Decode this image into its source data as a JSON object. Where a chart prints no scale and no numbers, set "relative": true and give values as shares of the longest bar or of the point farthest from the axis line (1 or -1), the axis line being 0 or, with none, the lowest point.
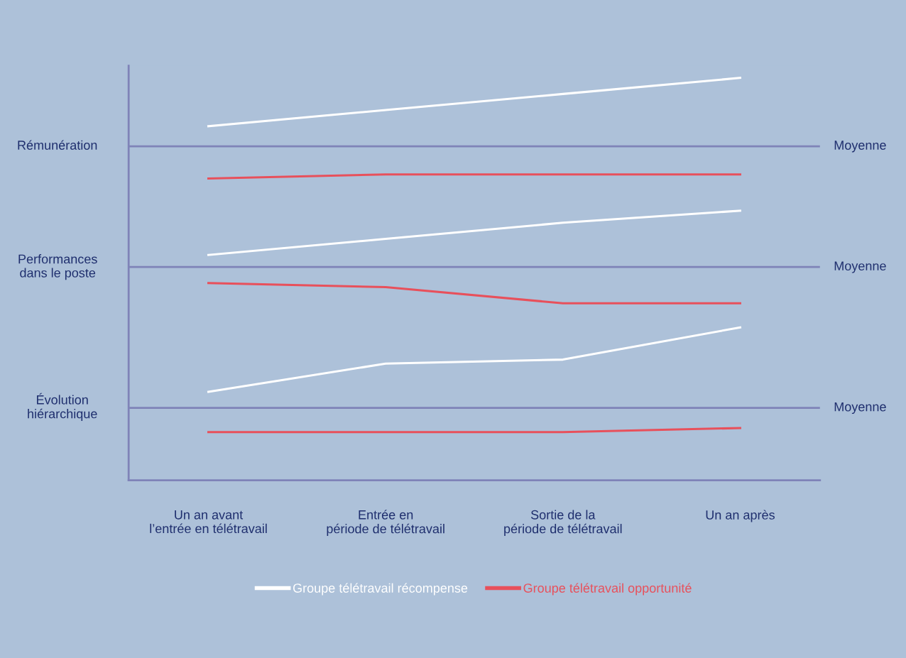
{
  "chart_data": {
    "type": "line",
    "relative": true,
    "categories": [
      "Un an avant\nl’entrée en télétravail",
      "Entrée en\npériode de télétravail",
      "Sortie de la\npériode de télétravail",
      "Un an après"
    ],
    "series": [
      {
        "name": "Groupe télétravail récompense",
        "color": "#ffffff",
        "values": [
          0.88,
          0.92,
          0.96,
          1.0
        ]
      },
      {
        "name": "Groupe télétravail opportunité",
        "color": "#e8505b",
        "values": [
          0.75,
          0.76,
          0.76,
          0.76
        ]
      },
      {
        "color": "#ffffff",
        "values": [
          0.56,
          0.6,
          0.64,
          0.67
        ]
      },
      {
        "color": "#e8505b",
        "values": [
          0.49,
          0.48,
          0.44,
          0.44
        ]
      },
      {
        "color": "#ffffff",
        "values": [
          0.22,
          0.29,
          0.3,
          0.38
        ]
      },
      {
        "color": "#e8505b",
        "values": [
          0.12,
          0.12,
          0.12,
          0.13
        ]
      }
    ],
    "ref_lines": [
      {
        "axis": "y",
        "value": 0.83,
        "label": "Moyenne",
        "color": "#7f83b8"
      },
      {
        "axis": "y",
        "value": 0.53,
        "label": "Moyenne",
        "color": "#7f83b8"
      },
      {
        "axis": "y",
        "value": 0.18,
        "label": "Moyenne",
        "color": "#7f83b8"
      }
    ],
    "annotations": [
      "Rémunération",
      "Performances\ndans le poste",
      "Évolution\nhiérarchique"
    ],
    "legend": "bottom",
    "grid": false,
    "marker": "none",
    "line_style": "solid"
  }
}
